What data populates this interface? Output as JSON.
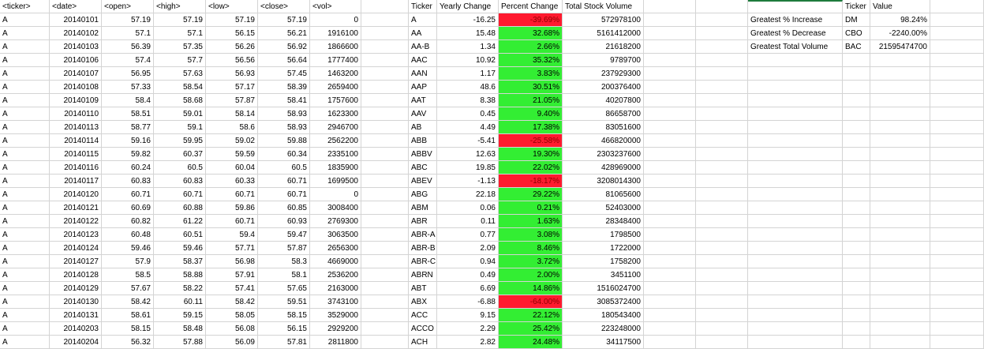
{
  "colors": {
    "positive_fill": "#33ee33",
    "negative_fill": "#ff1a2f",
    "gridline": "#d4d4d4"
  },
  "raw_table": {
    "headers": [
      "<ticker>",
      "<date>",
      "<open>",
      "<high>",
      "<low>",
      "<close>",
      "<vol>"
    ],
    "rows": [
      [
        "A",
        "20140101",
        "57.19",
        "57.19",
        "57.19",
        "57.19",
        "0"
      ],
      [
        "A",
        "20140102",
        "57.1",
        "57.1",
        "56.15",
        "56.21",
        "1916100"
      ],
      [
        "A",
        "20140103",
        "56.39",
        "57.35",
        "56.26",
        "56.92",
        "1866600"
      ],
      [
        "A",
        "20140106",
        "57.4",
        "57.7",
        "56.56",
        "56.64",
        "1777400"
      ],
      [
        "A",
        "20140107",
        "56.95",
        "57.63",
        "56.93",
        "57.45",
        "1463200"
      ],
      [
        "A",
        "20140108",
        "57.33",
        "58.54",
        "57.17",
        "58.39",
        "2659400"
      ],
      [
        "A",
        "20140109",
        "58.4",
        "58.68",
        "57.87",
        "58.41",
        "1757600"
      ],
      [
        "A",
        "20140110",
        "58.51",
        "59.01",
        "58.14",
        "58.93",
        "1623300"
      ],
      [
        "A",
        "20140113",
        "58.77",
        "59.1",
        "58.6",
        "58.93",
        "2946700"
      ],
      [
        "A",
        "20140114",
        "59.16",
        "59.95",
        "59.02",
        "59.88",
        "2562200"
      ],
      [
        "A",
        "20140115",
        "59.82",
        "60.37",
        "59.59",
        "60.34",
        "2335100"
      ],
      [
        "A",
        "20140116",
        "60.24",
        "60.5",
        "60.04",
        "60.5",
        "1835900"
      ],
      [
        "A",
        "20140117",
        "60.83",
        "60.83",
        "60.33",
        "60.71",
        "1699500"
      ],
      [
        "A",
        "20140120",
        "60.71",
        "60.71",
        "60.71",
        "60.71",
        "0"
      ],
      [
        "A",
        "20140121",
        "60.69",
        "60.88",
        "59.86",
        "60.85",
        "3008400"
      ],
      [
        "A",
        "20140122",
        "60.82",
        "61.22",
        "60.71",
        "60.93",
        "2769300"
      ],
      [
        "A",
        "20140123",
        "60.48",
        "60.51",
        "59.4",
        "59.47",
        "3063500"
      ],
      [
        "A",
        "20140124",
        "59.46",
        "59.46",
        "57.71",
        "57.87",
        "2656300"
      ],
      [
        "A",
        "20140127",
        "57.9",
        "58.37",
        "56.98",
        "58.3",
        "4669000"
      ],
      [
        "A",
        "20140128",
        "58.5",
        "58.88",
        "57.91",
        "58.1",
        "2536200"
      ],
      [
        "A",
        "20140129",
        "57.67",
        "58.22",
        "57.41",
        "57.65",
        "2163000"
      ],
      [
        "A",
        "20140130",
        "58.42",
        "60.11",
        "58.42",
        "59.51",
        "3743100"
      ],
      [
        "A",
        "20140131",
        "58.61",
        "59.15",
        "58.05",
        "58.15",
        "3529000"
      ],
      [
        "A",
        "20140203",
        "58.15",
        "58.48",
        "56.08",
        "56.15",
        "2929200"
      ],
      [
        "A",
        "20140204",
        "56.32",
        "57.88",
        "56.09",
        "57.81",
        "2811800"
      ]
    ]
  },
  "summary_table": {
    "headers": [
      "Ticker",
      "Yearly Change",
      "Percent Change",
      "Total Stock Volume"
    ],
    "rows": [
      {
        "ticker": "A",
        "yearly_change": "-16.25",
        "percent_change": "-39.69%",
        "total_volume": "572978100"
      },
      {
        "ticker": "AA",
        "yearly_change": "15.48",
        "percent_change": "32.68%",
        "total_volume": "5161412000"
      },
      {
        "ticker": "AA-B",
        "yearly_change": "1.34",
        "percent_change": "2.66%",
        "total_volume": "21618200"
      },
      {
        "ticker": "AAC",
        "yearly_change": "10.92",
        "percent_change": "35.32%",
        "total_volume": "9789700"
      },
      {
        "ticker": "AAN",
        "yearly_change": "1.17",
        "percent_change": "3.83%",
        "total_volume": "237929300"
      },
      {
        "ticker": "AAP",
        "yearly_change": "48.6",
        "percent_change": "30.51%",
        "total_volume": "200376400"
      },
      {
        "ticker": "AAT",
        "yearly_change": "8.38",
        "percent_change": "21.05%",
        "total_volume": "40207800"
      },
      {
        "ticker": "AAV",
        "yearly_change": "0.45",
        "percent_change": "9.40%",
        "total_volume": "86658700"
      },
      {
        "ticker": "AB",
        "yearly_change": "4.49",
        "percent_change": "17.38%",
        "total_volume": "83051600"
      },
      {
        "ticker": "ABB",
        "yearly_change": "-5.41",
        "percent_change": "-25.58%",
        "total_volume": "466820000"
      },
      {
        "ticker": "ABBV",
        "yearly_change": "12.63",
        "percent_change": "19.30%",
        "total_volume": "2303237600"
      },
      {
        "ticker": "ABC",
        "yearly_change": "19.85",
        "percent_change": "22.02%",
        "total_volume": "428969000"
      },
      {
        "ticker": "ABEV",
        "yearly_change": "-1.13",
        "percent_change": "-18.17%",
        "total_volume": "3208014300"
      },
      {
        "ticker": "ABG",
        "yearly_change": "22.18",
        "percent_change": "29.22%",
        "total_volume": "81065600"
      },
      {
        "ticker": "ABM",
        "yearly_change": "0.06",
        "percent_change": "0.21%",
        "total_volume": "52403000"
      },
      {
        "ticker": "ABR",
        "yearly_change": "0.11",
        "percent_change": "1.63%",
        "total_volume": "28348400"
      },
      {
        "ticker": "ABR-A",
        "yearly_change": "0.77",
        "percent_change": "3.08%",
        "total_volume": "1798500"
      },
      {
        "ticker": "ABR-B",
        "yearly_change": "2.09",
        "percent_change": "8.46%",
        "total_volume": "1722000"
      },
      {
        "ticker": "ABR-C",
        "yearly_change": "0.94",
        "percent_change": "3.72%",
        "total_volume": "1758200"
      },
      {
        "ticker": "ABRN",
        "yearly_change": "0.49",
        "percent_change": "2.00%",
        "total_volume": "3451100"
      },
      {
        "ticker": "ABT",
        "yearly_change": "6.69",
        "percent_change": "14.86%",
        "total_volume": "1516024700"
      },
      {
        "ticker": "ABX",
        "yearly_change": "-6.88",
        "percent_change": "-64.00%",
        "total_volume": "3085372400"
      },
      {
        "ticker": "ACC",
        "yearly_change": "9.15",
        "percent_change": "22.12%",
        "total_volume": "180543400"
      },
      {
        "ticker": "ACCO",
        "yearly_change": "2.29",
        "percent_change": "25.42%",
        "total_volume": "223248000"
      },
      {
        "ticker": "ACH",
        "yearly_change": "2.82",
        "percent_change": "24.48%",
        "total_volume": "34117500"
      }
    ]
  },
  "greatest_table": {
    "headers": [
      "Ticker",
      "Value"
    ],
    "rows": [
      {
        "label": "Greatest % Increase",
        "ticker": "DM",
        "value": "98.24%"
      },
      {
        "label": "Greatest % Decrease",
        "ticker": "CBO",
        "value": "-2240.00%"
      },
      {
        "label": "Greatest Total Volume",
        "ticker": "BAC",
        "value": "21595474700"
      }
    ]
  }
}
